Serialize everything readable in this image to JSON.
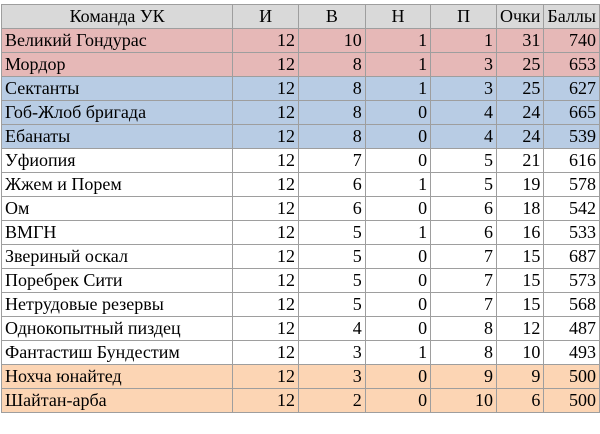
{
  "colors": {
    "header_bg": "#d9d9d9",
    "red_zone": "#e6b8b7",
    "blue_zone": "#b8cce4",
    "orange_zone": "#fcd5b4",
    "default": "#ffffff",
    "grid": "#9e9e9e"
  },
  "table": {
    "headers": [
      "Команда УК",
      "И",
      "В",
      "Н",
      "П",
      "Очки",
      "Баллы"
    ],
    "rows": [
      {
        "team": "Великий Гондурас",
        "i": "12",
        "w": "10",
        "d": "1",
        "l": "1",
        "pts": "31",
        "score": "740",
        "zone": "red"
      },
      {
        "team": "Мордор",
        "i": "12",
        "w": "8",
        "d": "1",
        "l": "3",
        "pts": "25",
        "score": "653",
        "zone": "red"
      },
      {
        "team": "Сектанты",
        "i": "12",
        "w": "8",
        "d": "1",
        "l": "3",
        "pts": "25",
        "score": "627",
        "zone": "blue"
      },
      {
        "team": "Гоб-Жлоб бригада",
        "i": "12",
        "w": "8",
        "d": "0",
        "l": "4",
        "pts": "24",
        "score": "665",
        "zone": "blue"
      },
      {
        "team": "Ебанаты",
        "i": "12",
        "w": "8",
        "d": "0",
        "l": "4",
        "pts": "24",
        "score": "539",
        "zone": "blue"
      },
      {
        "team": "Уфиопия",
        "i": "12",
        "w": "7",
        "d": "0",
        "l": "5",
        "pts": "21",
        "score": "616",
        "zone": "none"
      },
      {
        "team": "Жжем и Порем",
        "i": "12",
        "w": "6",
        "d": "1",
        "l": "5",
        "pts": "19",
        "score": "578",
        "zone": "none"
      },
      {
        "team": "Ом",
        "i": "12",
        "w": "6",
        "d": "0",
        "l": "6",
        "pts": "18",
        "score": "542",
        "zone": "none"
      },
      {
        "team": "ВМГН",
        "i": "12",
        "w": "5",
        "d": "1",
        "l": "6",
        "pts": "16",
        "score": "533",
        "zone": "none"
      },
      {
        "team": "Звериный оскал",
        "i": "12",
        "w": "5",
        "d": "0",
        "l": "7",
        "pts": "15",
        "score": "687",
        "zone": "none"
      },
      {
        "team": "Поребрек Сити",
        "i": "12",
        "w": "5",
        "d": "0",
        "l": "7",
        "pts": "15",
        "score": "573",
        "zone": "none"
      },
      {
        "team": "Нетрудовые резервы",
        "i": "12",
        "w": "5",
        "d": "0",
        "l": "7",
        "pts": "15",
        "score": "568",
        "zone": "none"
      },
      {
        "team": "Однокопытный пиздец",
        "i": "12",
        "w": "4",
        "d": "0",
        "l": "8",
        "pts": "12",
        "score": "487",
        "zone": "none"
      },
      {
        "team": "Фантастиш Бундестим",
        "i": "12",
        "w": "3",
        "d": "1",
        "l": "8",
        "pts": "10",
        "score": "493",
        "zone": "none"
      },
      {
        "team": "Нохча юнайтед",
        "i": "12",
        "w": "3",
        "d": "0",
        "l": "9",
        "pts": "9",
        "score": "500",
        "zone": "orange"
      },
      {
        "team": "Шайтан-арба",
        "i": "12",
        "w": "2",
        "d": "0",
        "l": "10",
        "pts": "6",
        "score": "500",
        "zone": "orange"
      }
    ]
  }
}
